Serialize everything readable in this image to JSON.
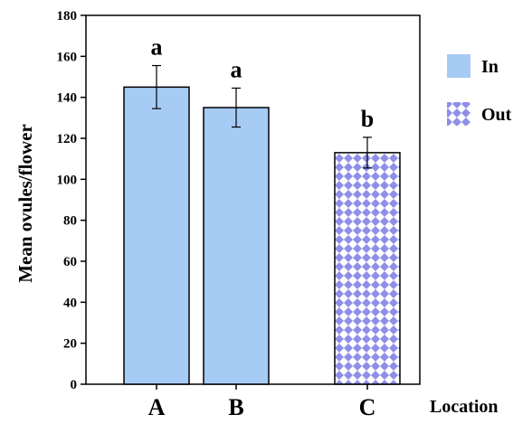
{
  "chart_data": {
    "type": "bar",
    "title": "",
    "xlabel": "Location",
    "ylabel": "Mean ovules/flower",
    "categories": [
      "A",
      "B",
      "C"
    ],
    "values": [
      145,
      135,
      113
    ],
    "error": [
      10.5,
      9.5,
      7.5
    ],
    "significance": [
      "a",
      "a",
      "b"
    ],
    "bar_series": [
      "In",
      "In",
      "Out"
    ],
    "series": [
      {
        "name": "In",
        "color": "#a6cbf5",
        "pattern": "solid"
      },
      {
        "name": "Out",
        "color": "#8f8fe8",
        "pattern": "checkered"
      }
    ],
    "ylim": [
      0,
      180
    ],
    "yticks": [
      "0",
      "20",
      "40",
      "60",
      "80",
      "100",
      "120",
      "140",
      "160",
      "180"
    ],
    "grid": false,
    "legend_position": "right"
  }
}
